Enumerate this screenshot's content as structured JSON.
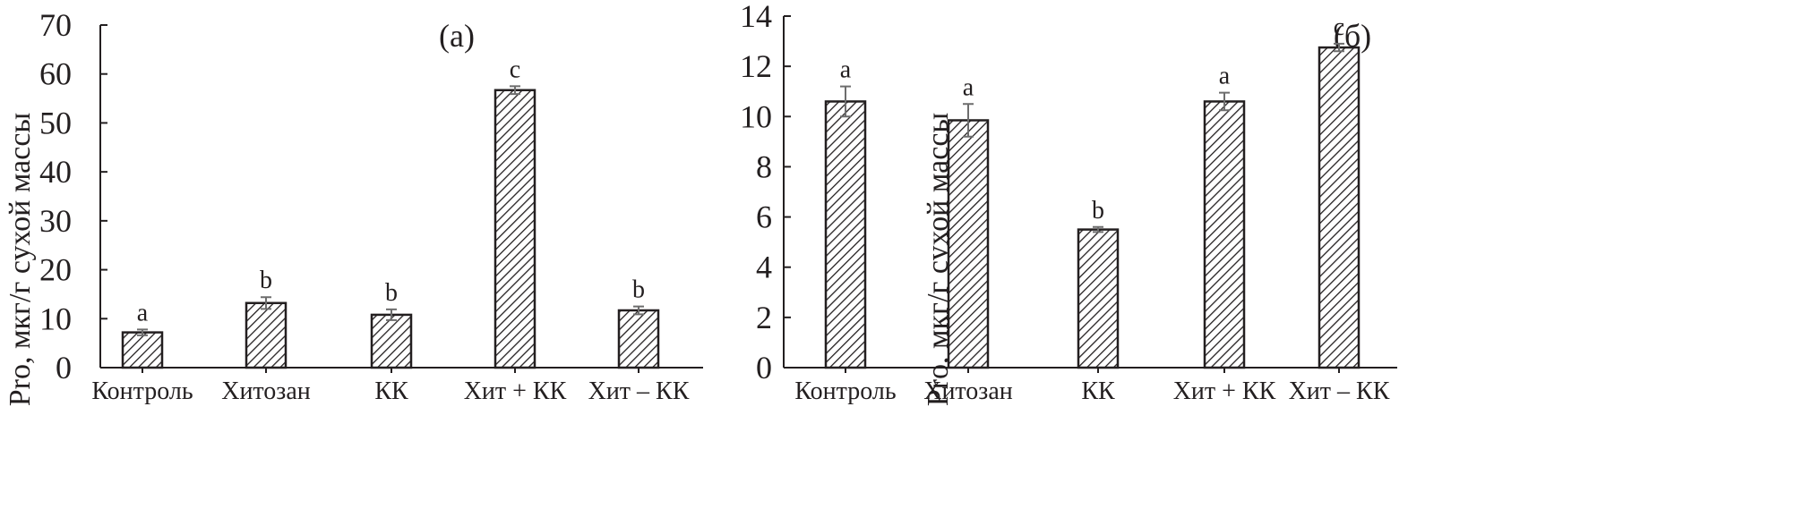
{
  "chart_data": [
    {
      "type": "bar",
      "title": "(а)",
      "ylabel": "Pro, мкг/г сухой массы",
      "xlabel": "",
      "ylim": [
        0,
        70
      ],
      "yticks": [
        0,
        10,
        20,
        30,
        40,
        50,
        60,
        70
      ],
      "categories": [
        "Контроль",
        "Хитозан",
        "КК",
        "Хит + КК",
        "Хит – КК"
      ],
      "values": [
        7.2,
        13.2,
        10.8,
        56.7,
        11.7
      ],
      "errors": [
        0.6,
        1.2,
        1.1,
        0.8,
        0.8
      ],
      "significance": [
        "a",
        "b",
        "b",
        "c",
        "b"
      ],
      "bar_fill": "hatched",
      "grid": false
    },
    {
      "type": "bar",
      "title": "(б)",
      "ylabel": "Pro, мкг/г сухой массы",
      "xlabel": "",
      "ylim": [
        0,
        14
      ],
      "yticks": [
        0,
        2,
        4,
        6,
        8,
        10,
        12,
        14
      ],
      "categories": [
        "Контроль",
        "Хитозан",
        "КК",
        "Хит + КК",
        "Хит – КК"
      ],
      "values": [
        10.6,
        9.85,
        5.5,
        10.6,
        12.75
      ],
      "errors": [
        0.6,
        0.65,
        0.1,
        0.35,
        0.15
      ],
      "significance": [
        "a",
        "a",
        "b",
        "a",
        "c"
      ],
      "bar_fill": "hatched",
      "grid": false
    }
  ],
  "colors": {
    "ink": "#231f20",
    "error_bar": "#6d6d6d",
    "background": "#ffffff"
  }
}
